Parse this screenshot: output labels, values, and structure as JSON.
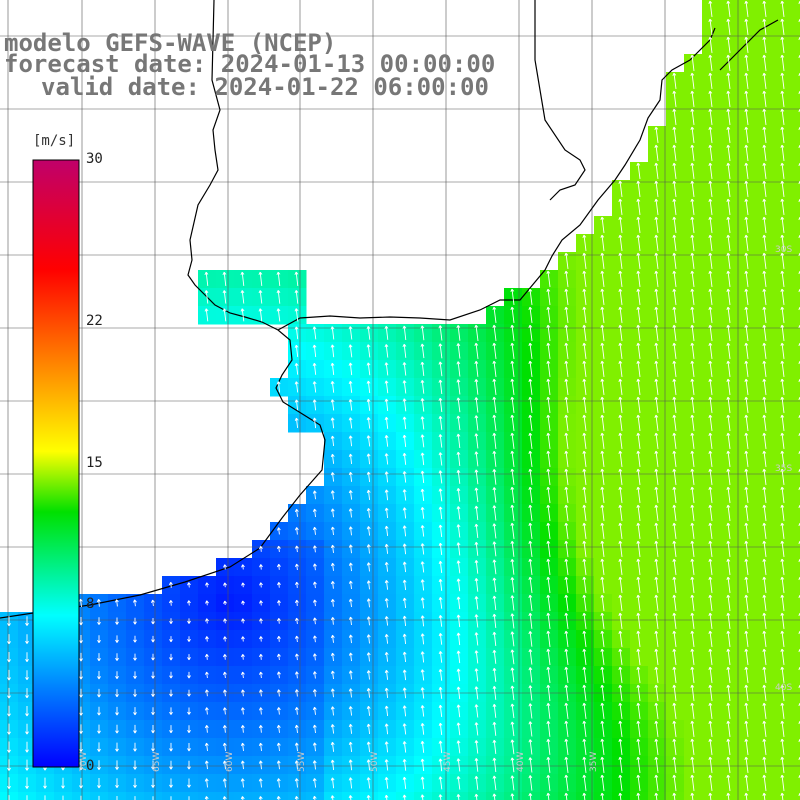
{
  "title": {
    "line1": "modelo GEFS-WAVE (NCEP)",
    "line2": "forecast date: 2024-01-13 00:00:00",
    "line3": "valid date: 2024-01-22 06:00:00"
  },
  "legend": {
    "unit": "[m/s]",
    "ticks": [
      {
        "label": "30",
        "value": 30
      },
      {
        "label": "22",
        "value": 22
      },
      {
        "label": "15",
        "value": 15
      },
      {
        "label": "8",
        "value": 8
      },
      {
        "label": "0",
        "value": 0
      }
    ],
    "range": [
      0,
      30
    ]
  },
  "map": {
    "field": "wind speed",
    "colors": {
      "land": "#ffffff",
      "grid": "#555555",
      "coast": "#000000",
      "arrow": "#ffffff"
    },
    "lat_labels": [
      "30S",
      "35S",
      "40S"
    ],
    "lon_labels": [
      "70W",
      "65W",
      "60W",
      "55W",
      "50W",
      "45W",
      "40W",
      "35W"
    ]
  }
}
